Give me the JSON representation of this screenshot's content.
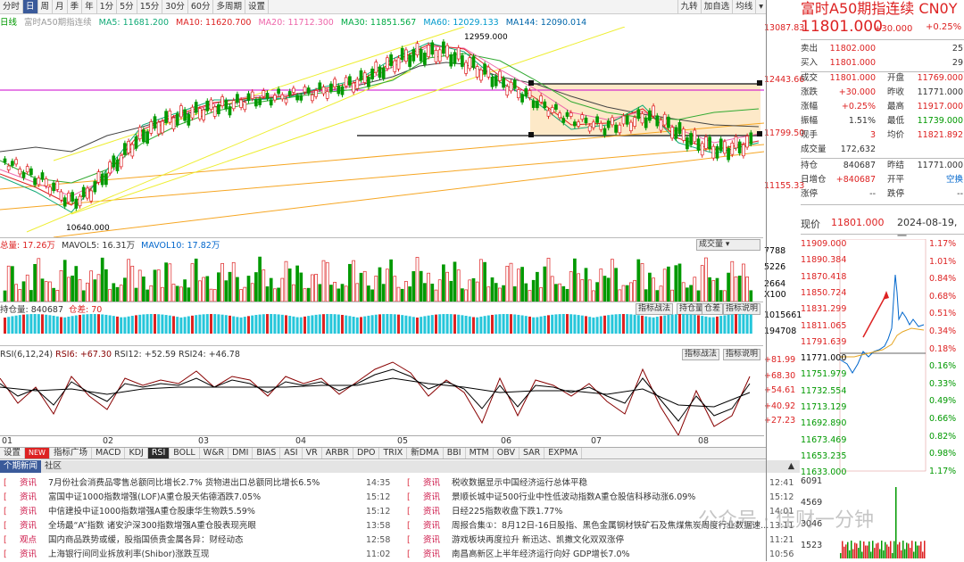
{
  "toolbar": {
    "tabs": [
      "分时",
      "日",
      "周",
      "月",
      "季",
      "年",
      "1分",
      "5分",
      "15分",
      "30分",
      "60分",
      "多周期",
      "设置"
    ],
    "active": "日",
    "right": [
      "九转",
      "加自选",
      "均线"
    ]
  },
  "ma_line": {
    "label": "日线",
    "name": "富时A50期指连续",
    "ma5": "MA5: 11681.200",
    "ma10": "MA10: 11620.700",
    "ma20": "MA20: 11712.300",
    "ma30": "MA30: 11851.567",
    "ma60": "MA60: 12029.133",
    "ma144": "MA144: 12090.014"
  },
  "price_axis": [
    "13087.83",
    "12443.66",
    "11799.50",
    "11155.33"
  ],
  "annotations": {
    "high": "12959.000",
    "low": "10640.000"
  },
  "volume": {
    "header": "总量: 17.26万",
    "mavol5": "MAVOL5: 16.31万",
    "mavol10": "MAVOL10: 17.82万",
    "selector": "成交量",
    "axis": [
      "7788",
      "5226",
      "2664",
      "X100"
    ]
  },
  "oi": {
    "header": "持仓量: 840687",
    "diff": "仓差: 70",
    "btn1": "指标战法",
    "btn2": "持仓量",
    "btn3": "仓差",
    "btn4": "指标说明",
    "axis": [
      "1015661",
      "194708"
    ]
  },
  "rsi": {
    "header": "RSI(6,12,24)",
    "rsi6": "RSI6: +67.30",
    "rsi12": "RSI12: +52.59",
    "rsi24": "RSI24: +46.78",
    "btn1": "指标战法",
    "btn2": "指标说明",
    "axis": [
      "+81.99",
      "+68.30",
      "+54.61",
      "+40.92",
      "+27.23"
    ]
  },
  "months": [
    "01",
    "02",
    "03",
    "04",
    "05",
    "06",
    "07",
    "08"
  ],
  "indicator_tabs": [
    "设置",
    "NEW",
    "指标广场",
    "MACD",
    "KDJ",
    "RSI",
    "BOLL",
    "W&R",
    "DMI",
    "BIAS",
    "ASI",
    "VR",
    "ARBR",
    "DPO",
    "TRIX",
    "新DMA",
    "BBI",
    "MTM",
    "OBV",
    "SAR",
    "EXPMA"
  ],
  "active_indicator": "RSI",
  "news_tabs": [
    "个期新闻",
    "社区"
  ],
  "news_left": [
    {
      "cat": "资讯",
      "title": "7月份社会消费品零售总额同比增长2.7% 货物进出口总额同比增长6.5%",
      "time": "14:35"
    },
    {
      "cat": "资讯",
      "title": "富国中证1000指数增强(LOF)A重仓股天佑德酒跌7.05%",
      "time": "15:12"
    },
    {
      "cat": "资讯",
      "title": "中信建投中证1000指数增强A重仓股康华生物跌5.59%",
      "time": "15:12"
    },
    {
      "cat": "资讯",
      "title": "全场最“A”指数 诸安沪深300指数增强A重仓股表现亮眼",
      "time": "13:58"
    },
    {
      "cat": "观点",
      "title": "国内商品跌势或缓，股指国债贵金属各异：财经动态",
      "time": "12:58"
    },
    {
      "cat": "资讯",
      "title": "上海银行间同业拆放利率(Shibor)涨跌互现",
      "time": "11:02"
    }
  ],
  "news_right": [
    {
      "cat": "资讯",
      "title": "税收数据显示中国经济运行总体平稳",
      "time": "12:41"
    },
    {
      "cat": "资讯",
      "title": "景顺长城中证500行业中性低波动指数A重仓股信科移动涨6.09%",
      "time": "15:12"
    },
    {
      "cat": "资讯",
      "title": "日经225指数收盘下跌1.77%",
      "time": "14:01"
    },
    {
      "cat": "资讯",
      "title": "周报合集①：8月12日-16日股指、黑色金属钢材铁矿石及焦煤焦炭周度行业数据速...",
      "time": "13:11"
    },
    {
      "cat": "资讯",
      "title": "游戏板块再度拉升 新迅达、凯撒文化双双涨停",
      "time": "11:21"
    },
    {
      "cat": "资讯",
      "title": "南昌高新区上半年经济运行向好 GDP增长7.0%",
      "time": "10:56"
    }
  ],
  "quote": {
    "title": "富时A50期指连续 CN0Y",
    "price": "11801.000",
    "change": "+30.000",
    "pct": "+0.25%",
    "sell_label": "卖出",
    "sell": "11802.000",
    "sell_vol": "25",
    "buy_label": "买入",
    "buy": "11801.000",
    "buy_vol": "29",
    "rows": [
      [
        "成交",
        "11801.000",
        "开盘",
        "11769.000"
      ],
      [
        "涨跌",
        "+30.000",
        "昨收",
        "11771.000"
      ],
      [
        "涨幅",
        "+0.25%",
        "最高",
        "11917.000"
      ],
      [
        "振幅",
        "1.51%",
        "最低",
        "11739.000"
      ],
      [
        "现手",
        "3",
        "均价",
        "11821.892"
      ]
    ],
    "volume_label": "成交量",
    "volume": "172,632",
    "oi_label": "持仓",
    "oi": "840687",
    "settle_label": "昨结",
    "settle": "11771.000",
    "dayoi_label": "日增仓",
    "dayoi": "+840687",
    "open_label": "开平",
    "open_type": "空换",
    "up_label": "涨停",
    "up": "--",
    "down_label": "跌停",
    "down": "--",
    "now_label": "现价",
    "now": "11801.000",
    "date": "2024-08-19,一"
  },
  "intraday": {
    "left_axis": [
      "11909.000",
      "11890.384",
      "11870.418",
      "11850.724",
      "11831.299",
      "11811.065",
      "11791.639",
      "11771.000",
      "11751.979",
      "11732.554",
      "11713.129",
      "11692.890",
      "11673.469",
      "11653.235",
      "11633.000"
    ],
    "right_axis": [
      "1.17%",
      "1.01%",
      "0.84%",
      "0.68%",
      "0.51%",
      "0.34%",
      "0.18%",
      "0.16%",
      "0.33%",
      "0.49%",
      "0.66%",
      "0.82%",
      "0.98%",
      "1.17%"
    ],
    "vol_axis": [
      "6091",
      "4569",
      "3046",
      "1523"
    ]
  },
  "watermark": "公众号 · 佳财一分钟"
}
